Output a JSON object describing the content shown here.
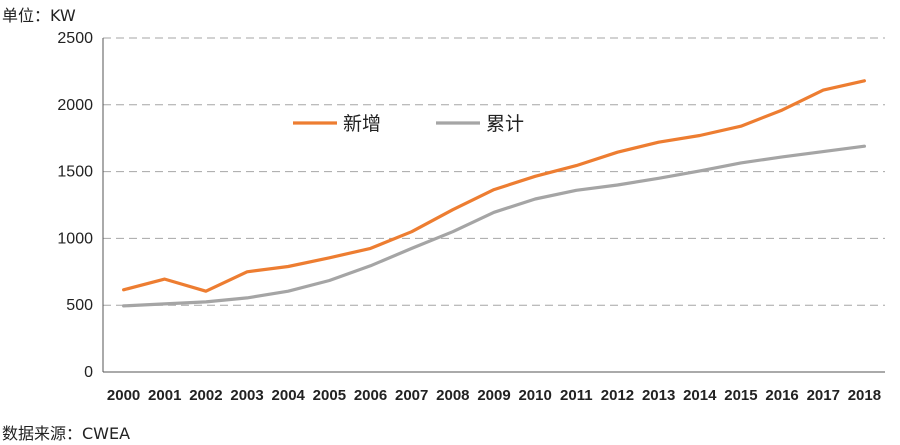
{
  "unit_label": "单位：KW",
  "source_label": "数据来源：CWEA",
  "chart_data": {
    "type": "line",
    "title": "",
    "xlabel": "",
    "ylabel": "",
    "ylim": [
      0,
      2500
    ],
    "yticks": [
      "0",
      "500",
      "1000",
      "1500",
      "2000",
      "2500"
    ],
    "categories": [
      "2000",
      "2001",
      "2002",
      "2003",
      "2004",
      "2005",
      "2006",
      "2007",
      "2008",
      "2009",
      "2010",
      "2011",
      "2012",
      "2013",
      "2014",
      "2015",
      "2016",
      "2017",
      "2018"
    ],
    "grid": true,
    "legend_position": "top-center",
    "series": [
      {
        "name": "新增",
        "color": "#ed7d31",
        "values": [
          615,
          695,
          605,
          750,
          790,
          855,
          925,
          1050,
          1215,
          1365,
          1465,
          1545,
          1645,
          1720,
          1770,
          1840,
          1960,
          2110,
          2180
        ]
      },
      {
        "name": "累计",
        "color": "#a5a5a5",
        "values": [
          495,
          510,
          525,
          555,
          605,
          685,
          795,
          925,
          1050,
          1195,
          1295,
          1360,
          1400,
          1450,
          1505,
          1565,
          1610,
          1650,
          1690
        ]
      }
    ]
  }
}
